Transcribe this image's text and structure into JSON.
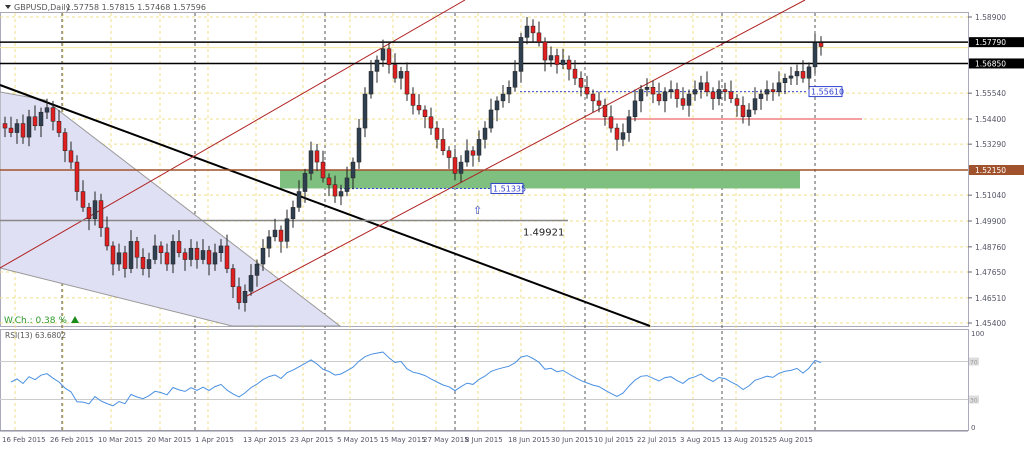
{
  "header": {
    "symbol": "GBPUSD,Daily",
    "ohlc": "1.57758 1.57815 1.57468 1.57596"
  },
  "weekly_change": "W.Ch.: 0.38 %",
  "rsi_label": "RSI(13) 63.6802",
  "annotations": {
    "level_1": "1.49921",
    "level_2": "1.51335",
    "level_3": "1.55610"
  },
  "colors": {
    "bull": "#2f3f4f",
    "bear": "#e02020",
    "grid": "#f0e08a",
    "zone": "#7fbf7f",
    "channel": "#b02020",
    "support": "#a0522d",
    "rsi": "#4a90e2"
  },
  "chart_data": {
    "type": "candlestick",
    "title": "GBPUSD,Daily",
    "price_ticks": [
      "1.58900",
      "1.55540",
      "1.54400",
      "1.53290",
      "1.51040",
      "1.49900",
      "1.48760",
      "1.47650",
      "1.46510",
      "1.45400"
    ],
    "price_tick_values": [
      1.589,
      1.5554,
      1.544,
      1.5329,
      1.5104,
      1.499,
      1.4876,
      1.4765,
      1.4651,
      1.454
    ],
    "ylim": [
      1.454,
      1.589
    ],
    "price_labels": [
      {
        "text": "1.57790",
        "value": 1.5779,
        "color": "#000000"
      },
      {
        "text": "1.56850",
        "value": 1.5685,
        "color": "#000000"
      },
      {
        "text": "1.52150",
        "value": 1.5215,
        "color": "#a0522d"
      }
    ],
    "date_ticks": [
      "16 Feb 2015",
      "26 Feb 2015",
      "10 Mar 2015",
      "20 Mar 2015",
      "1 Apr 2015",
      "13 Apr 2015",
      "23 Apr 2015",
      "5 May 2015",
      "15 May 2015",
      "27 May 2015",
      "8 Jun 2015",
      "18 Jun 2015",
      "30 Jun 2015",
      "10 Jul 2015",
      "22 Jul 2015",
      "3 Aug 2015",
      "13 Aug 2015",
      "25 Aug 2015"
    ],
    "closes": [
      1.54,
      1.538,
      1.542,
      1.536,
      1.545,
      1.541,
      1.547,
      1.549,
      1.543,
      1.538,
      1.53,
      1.525,
      1.512,
      1.505,
      1.5,
      1.508,
      1.496,
      1.488,
      1.48,
      1.485,
      1.478,
      1.49,
      1.483,
      1.478,
      1.482,
      1.488,
      1.485,
      1.48,
      1.49,
      1.485,
      1.482,
      1.487,
      1.482,
      1.486,
      1.48,
      1.485,
      1.488,
      1.478,
      1.47,
      1.463,
      1.468,
      1.475,
      1.48,
      1.487,
      1.492,
      1.495,
      1.49,
      1.5,
      1.505,
      1.512,
      1.52,
      1.53,
      1.525,
      1.518,
      1.515,
      1.51,
      1.512,
      1.518,
      1.525,
      1.54,
      1.555,
      1.565,
      1.57,
      1.575,
      1.568,
      1.562,
      1.565,
      1.555,
      1.55,
      1.548,
      1.545,
      1.54,
      1.535,
      1.53,
      1.527,
      1.52,
      1.525,
      1.53,
      1.528,
      1.535,
      1.54,
      1.548,
      1.552,
      1.555,
      1.558,
      1.565,
      1.58,
      1.585,
      1.582,
      1.578,
      1.57,
      1.572,
      1.568,
      1.57,
      1.566,
      1.562,
      1.558,
      1.555,
      1.552,
      1.55,
      1.545,
      1.54,
      1.535,
      1.538,
      1.545,
      1.552,
      1.557,
      1.558,
      1.555,
      1.552,
      1.556,
      1.557,
      1.553,
      1.55,
      1.555,
      1.557,
      1.56,
      1.556,
      1.553,
      1.557,
      1.556,
      1.553,
      1.55,
      1.545,
      1.548,
      1.553,
      1.555,
      1.557,
      1.556,
      1.56,
      1.562,
      1.563,
      1.565,
      1.562,
      1.567,
      1.57758,
      1.57596
    ],
    "rsi_levels": [
      100,
      70,
      30,
      0
    ],
    "grid": true
  }
}
